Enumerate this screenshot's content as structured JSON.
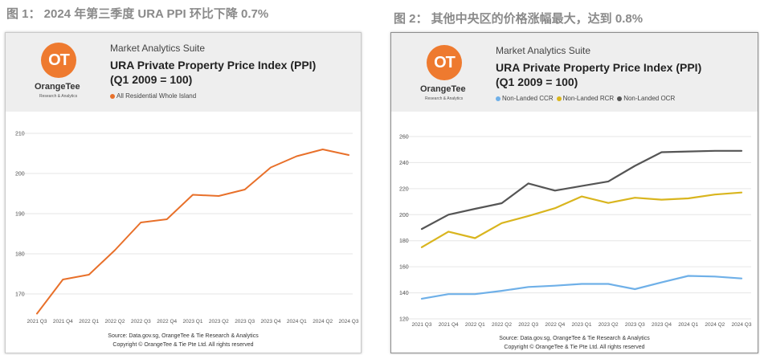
{
  "captions": {
    "fig1": "图 1： 2024 年第三季度 URA PPI 环比下降 0.7%",
    "fig2": "图 2： 其他中央区的价格涨幅最大，达到 0.8%"
  },
  "panels": [
    {
      "logo_text": "OT",
      "brand": "OrangeTee",
      "brand_sub": "Research & Analytics",
      "suite": "Market Analytics Suite",
      "title_line1": "URA Private Property Price Index (PPI)",
      "title_line2": "(Q1 2009 = 100)",
      "source": "Source: Data.gov.sg, OrangeTee & Tie Research & Analytics",
      "copyright": "Copyright © OrangeTee & Tie Pte Ltd. All rights reserved"
    },
    {
      "logo_text": "OT",
      "brand": "OrangeTee",
      "brand_sub": "Research & Analytics",
      "suite": "Market Analytics Suite",
      "title_line1": "URA Private Property Price Index (PPI)",
      "title_line2": "(Q1 2009 = 100)",
      "source": "Source: Data.gov.sg, OrangeTee & Tie Research & Analytics",
      "copyright": "Copyright © OrangeTee & Tie Pte Ltd. All rights reserved"
    }
  ],
  "chart_data": [
    {
      "type": "line",
      "categories": [
        "2021 Q3",
        "2021 Q4",
        "2022 Q1",
        "2022 Q2",
        "2022 Q3",
        "2022 Q4",
        "2023 Q1",
        "2023 Q2",
        "2023 Q3",
        "2023 Q4",
        "2024 Q1",
        "2024 Q2",
        "2024 Q3"
      ],
      "series": [
        {
          "name": "All Residential Whole Island",
          "color": "#e8702a",
          "values": [
            165.1,
            173.6,
            174.8,
            180.9,
            187.8,
            188.6,
            194.7,
            194.4,
            196.0,
            201.5,
            204.3,
            206.0,
            204.6
          ]
        }
      ],
      "ylim": [
        165,
        210
      ],
      "yticks": [
        170,
        180,
        190,
        200,
        210
      ],
      "grid": true,
      "legend": "top-left"
    },
    {
      "type": "line",
      "categories": [
        "2021 Q3",
        "2021 Q4",
        "2022 Q1",
        "2022 Q2",
        "2022 Q3",
        "2022 Q4",
        "2023 Q1",
        "2023 Q2",
        "2023 Q3",
        "2023 Q4",
        "2024 Q1",
        "2024 Q2",
        "2024 Q3"
      ],
      "series": [
        {
          "name": "Non-Landed CCR",
          "color": "#6fb0e8",
          "values": [
            135.5,
            139.0,
            139.0,
            141.5,
            144.5,
            145.5,
            146.8,
            146.8,
            142.8,
            148.0,
            153.0,
            152.5,
            151.0
          ]
        },
        {
          "name": "Non-Landed RCR",
          "color": "#d9b51e",
          "values": [
            175.0,
            187.0,
            182.0,
            193.5,
            199.0,
            205.0,
            214.0,
            209.0,
            213.0,
            211.5,
            212.5,
            215.5,
            217.0
          ]
        },
        {
          "name": "Non-Landed OCR",
          "color": "#555555",
          "values": [
            189.0,
            200.0,
            204.5,
            208.8,
            224.0,
            218.5,
            222.0,
            225.5,
            237.5,
            248.0,
            248.5,
            249.0,
            249.0
          ]
        }
      ],
      "ylim": [
        120,
        260
      ],
      "yticks": [
        120,
        140,
        160,
        180,
        200,
        220,
        240,
        260
      ],
      "grid": true,
      "legend": "top-left"
    }
  ]
}
